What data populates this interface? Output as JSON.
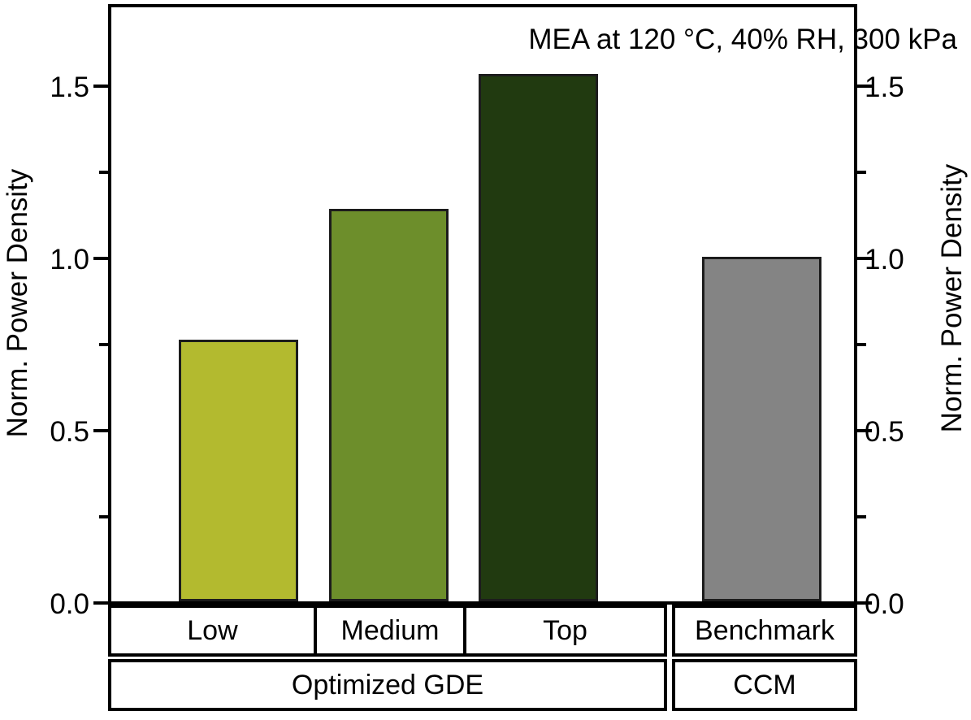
{
  "title": "MEA at 120 °C, 40% RH, 300 kPa",
  "left_axis": {
    "label": "Norm. Power Density",
    "ticks": [
      "0.0",
      "0.5",
      "1.0",
      "1.5"
    ]
  },
  "right_axis": {
    "label": "Norm. Power Density",
    "ticks": [
      "0.0",
      "0.5",
      "1.0",
      "1.5"
    ]
  },
  "chart_data": {
    "type": "bar",
    "title": "MEA at 120 °C, 40% RH, 300 kPa",
    "categories": [
      "Low",
      "Medium",
      "Top",
      "Benchmark"
    ],
    "values": [
      0.76,
      1.14,
      1.53,
      1.0
    ],
    "bar_colors": [
      "#b3ba2f",
      "#6d8e2b",
      "#213a10",
      "#848484"
    ],
    "bar_edge_color": "#1c1c1c",
    "ylabel": "Norm. Power Density",
    "ylabel_right": "Norm. Power Density",
    "ylim": [
      0,
      1.75
    ],
    "yticks_major": [
      0,
      0.5,
      1.0,
      1.5
    ],
    "ytick_labels": [
      "0.0",
      "0.5",
      "1.0",
      "1.5"
    ],
    "yticks_minor": [
      0.25,
      0.75,
      1.25
    ],
    "grid": "off",
    "legend": "none",
    "groups": [
      {
        "label": "Optimized GDE",
        "categories": [
          "Low",
          "Medium",
          "Top"
        ]
      },
      {
        "label": "CCM",
        "categories": [
          "Benchmark"
        ]
      }
    ]
  },
  "category_row": {
    "low": "Low",
    "medium": "Medium",
    "top": "Top",
    "benchmark": "Benchmark"
  },
  "group_row": {
    "gde": "Optimized GDE",
    "ccm": "CCM"
  }
}
